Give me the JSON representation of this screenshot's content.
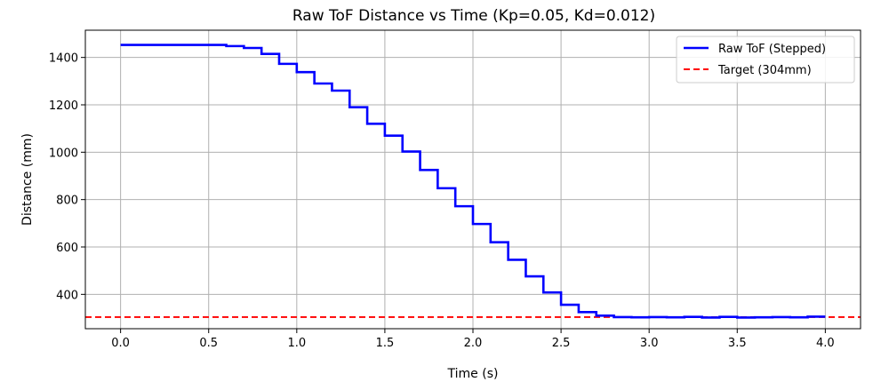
{
  "chart_data": {
    "type": "line",
    "title": "Raw ToF Distance vs Time (Kp=0.05, Kd=0.012)",
    "xlabel": "Time (s)",
    "ylabel": "Distance (mm)",
    "xlim": [
      -0.2,
      4.2
    ],
    "ylim": [
      255,
      1515
    ],
    "xticks": [
      0.0,
      0.5,
      1.0,
      1.5,
      2.0,
      2.5,
      3.0,
      3.5,
      4.0
    ],
    "xtick_labels": [
      "0.0",
      "0.5",
      "1.0",
      "1.5",
      "2.0",
      "2.5",
      "3.0",
      "3.5",
      "4.0"
    ],
    "yticks": [
      400,
      600,
      800,
      1000,
      1200,
      1400
    ],
    "ytick_labels": [
      "400",
      "600",
      "800",
      "1000",
      "1200",
      "1400"
    ],
    "grid": true,
    "legend_position": "top-right",
    "series": [
      {
        "name": "Raw ToF (Stepped)",
        "style": "solid",
        "color": "#0000ff",
        "x": [
          0.0,
          0.6,
          0.6,
          0.7,
          0.7,
          0.8,
          0.8,
          0.9,
          0.9,
          1.0,
          1.0,
          1.1,
          1.1,
          1.2,
          1.2,
          1.3,
          1.3,
          1.4,
          1.4,
          1.5,
          1.5,
          1.6,
          1.6,
          1.7,
          1.7,
          1.8,
          1.8,
          1.9,
          1.9,
          2.0,
          2.0,
          2.1,
          2.1,
          2.2,
          2.2,
          2.3,
          2.3,
          2.4,
          2.4,
          2.5,
          2.5,
          2.6,
          2.6,
          2.7,
          2.7,
          2.8,
          2.8,
          2.9,
          2.9,
          3.0,
          3.0,
          3.1,
          3.1,
          3.2,
          3.2,
          3.3,
          3.3,
          3.4,
          3.4,
          3.5,
          3.5,
          3.6,
          3.6,
          3.7,
          3.7,
          3.8,
          3.8,
          3.9,
          3.9,
          4.0
        ],
        "y": [
          1453,
          1453,
          1448,
          1448,
          1440,
          1440,
          1415,
          1415,
          1373,
          1373,
          1338,
          1338,
          1290,
          1290,
          1260,
          1260,
          1190,
          1190,
          1120,
          1120,
          1070,
          1070,
          1003,
          1003,
          925,
          925,
          848,
          848,
          772,
          772,
          697,
          697,
          620,
          620,
          546,
          546,
          476,
          476,
          408,
          408,
          356,
          356,
          325,
          325,
          310,
          310,
          304,
          304,
          303,
          303,
          304,
          304,
          303,
          303,
          305,
          305,
          302,
          302,
          305,
          305,
          302,
          302,
          303,
          303,
          304,
          304,
          303,
          303,
          306,
          306
        ]
      },
      {
        "name": "Target (304mm)",
        "style": "dashed",
        "color": "#ff0000",
        "value": 304
      }
    ]
  }
}
